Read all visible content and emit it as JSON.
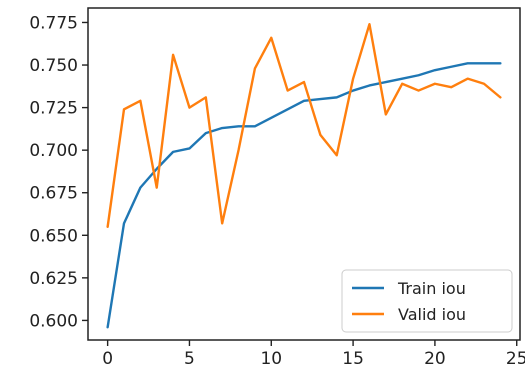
{
  "chart_data": {
    "type": "line",
    "title": "",
    "xlabel": "",
    "ylabel": "",
    "xlim": [
      -1.2,
      25.2
    ],
    "ylim": [
      0.5885,
      0.7835
    ],
    "xticks": [
      0,
      5,
      10,
      15,
      20,
      25
    ],
    "yticks": [
      0.6,
      0.625,
      0.65,
      0.675,
      0.7,
      0.725,
      0.75,
      0.775
    ],
    "ytick_labels": [
      "0.600",
      "0.625",
      "0.650",
      "0.675",
      "0.700",
      "0.725",
      "0.750",
      "0.775"
    ],
    "grid": false,
    "legend_position": "lower right",
    "x": [
      0,
      1,
      2,
      3,
      4,
      5,
      6,
      7,
      8,
      9,
      10,
      11,
      12,
      13,
      14,
      15,
      16,
      17,
      18,
      19,
      20,
      21,
      22,
      23,
      24
    ],
    "series": [
      {
        "name": "Train iou",
        "color": "#1f77b4",
        "values": [
          0.596,
          0.657,
          0.678,
          0.689,
          0.699,
          0.701,
          0.71,
          0.713,
          0.714,
          0.714,
          0.719,
          0.724,
          0.729,
          0.73,
          0.731,
          0.735,
          0.738,
          0.74,
          0.742,
          0.744,
          0.747,
          0.749,
          0.751,
          0.751,
          0.751
        ]
      },
      {
        "name": "Valid iou",
        "color": "#ff7f0e",
        "values": [
          0.655,
          0.724,
          0.729,
          0.678,
          0.756,
          0.725,
          0.731,
          0.657,
          0.7,
          0.748,
          0.766,
          0.735,
          0.74,
          0.709,
          0.697,
          0.742,
          0.774,
          0.721,
          0.739,
          0.735,
          0.739,
          0.737,
          0.742,
          0.739,
          0.731
        ]
      }
    ]
  }
}
